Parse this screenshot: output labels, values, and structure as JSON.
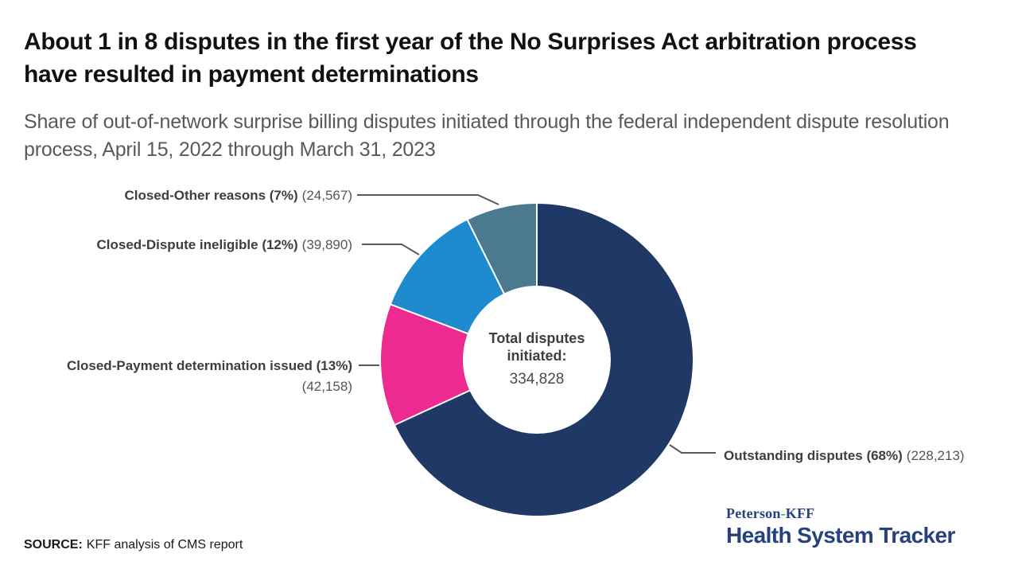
{
  "header": {
    "title": "About 1 in 8 disputes in the first year of the No Surprises Act arbitration process have resulted in payment determinations",
    "subtitle": "Share of out-of-network surprise billing disputes initiated through the federal independent dispute resolution process, April 15, 2022 through March 31, 2023"
  },
  "chart_data": {
    "type": "pie",
    "subtype": "donut",
    "title": "About 1 in 8 disputes in the first year of the No Surprises Act arbitration process have resulted in payment determinations",
    "direction": "clockwise",
    "start_angle_deg": 0,
    "total_label": "Total disputes initiated:",
    "total_value": 334828,
    "total_value_text": "334,828",
    "slices": [
      {
        "key": "outstanding-disputes",
        "name": "Outstanding disputes",
        "pct": 68,
        "value": 228213,
        "bold_text": "Outstanding disputes (68%)",
        "count_text": "(228,213)",
        "color": "#1f3866"
      },
      {
        "key": "closed-payment-determination-issued",
        "name": "Closed-Payment determination issued",
        "pct": 13,
        "value": 42158,
        "bold_text": "Closed-Payment determination issued (13%)",
        "count_text": "(42,158)",
        "color": "#ec2a90"
      },
      {
        "key": "closed-dispute-ineligible",
        "name": "Closed-Dispute ineligible",
        "pct": 12,
        "value": 39890,
        "bold_text": "Closed-Dispute ineligible (12%)",
        "count_text": "(39,890)",
        "color": "#1d8bce"
      },
      {
        "key": "closed-other-reasons",
        "name": "Closed-Other reasons",
        "pct": 7,
        "value": 24567,
        "bold_text": "Closed-Other reasons (7%)",
        "count_text": "(24,567)",
        "color": "#4b7a90"
      }
    ],
    "colors": {
      "leader_line": "#58595b",
      "separator": "#ffffff",
      "hole": "#ffffff"
    }
  },
  "source": {
    "prefix": "SOURCE:",
    "text": "KFF analysis of CMS report"
  },
  "logo": {
    "brand_left": "Peterson",
    "brand_hyphen": "-",
    "brand_right": "KFF",
    "bottom": "Health System Tracker",
    "navy": "#26417c",
    "green": "#2aa84a"
  }
}
